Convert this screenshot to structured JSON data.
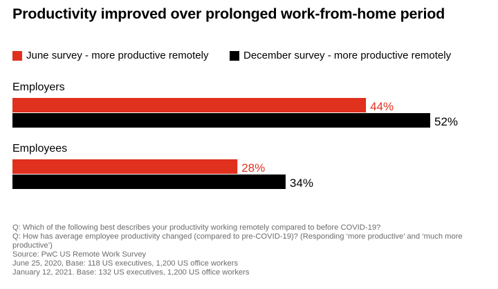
{
  "title": "Productivity improved over prolonged work-from-home period",
  "colors": {
    "june": "#e0301e",
    "december": "#000000",
    "note_text": "#6b6b6b"
  },
  "legend": [
    {
      "label": "June survey - more productive remotely",
      "color": "#e0301e"
    },
    {
      "label": "December survey - more productive remotely",
      "color": "#000000"
    }
  ],
  "chart_data": {
    "type": "bar",
    "orientation": "horizontal",
    "categories": [
      "Employers",
      "Employees"
    ],
    "series": [
      {
        "name": "June survey - more productive remotely",
        "values": [
          44,
          28
        ],
        "labels": [
          "44%",
          "28%"
        ],
        "color": "#e0301e"
      },
      {
        "name": "December survey - more productive remotely",
        "values": [
          52,
          34
        ],
        "labels": [
          "52%",
          "34%"
        ],
        "color": "#000000"
      }
    ],
    "xlim": [
      0,
      100
    ],
    "grid": false,
    "legend_position": "top"
  },
  "notes": [
    "Q: Which of the following best describes your productivity working remotely compared to before COVID-19?",
    "Q: How has average employee productivity changed (compared to pre-COVID-19)? (Responding ‘more productive’ and ‘much more productive’)",
    "Source: PwC US Remote Work Survey",
    "June 25, 2020, Base: 118 US executives, 1,200 US office workers",
    "January 12, 2021. Base: 132 US executives, 1,200 US office workers"
  ]
}
